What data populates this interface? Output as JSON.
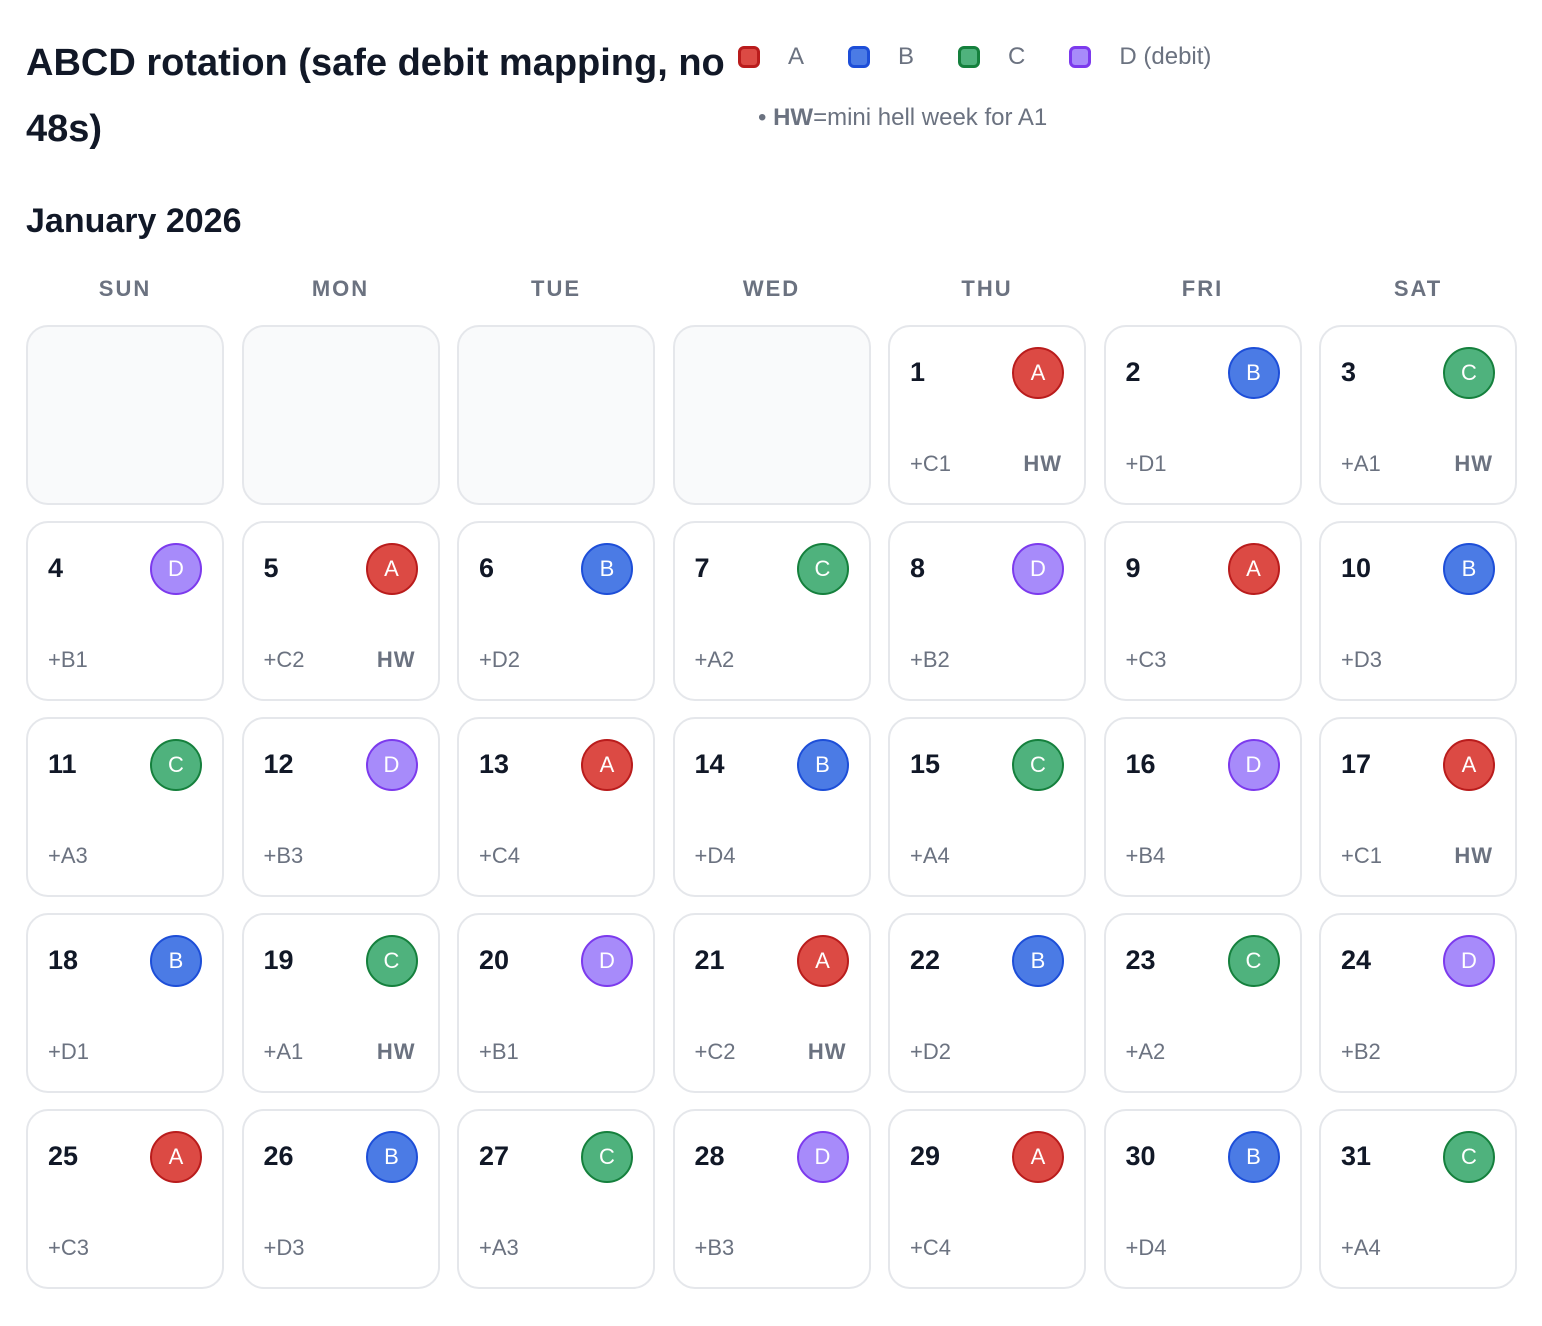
{
  "title": "ABCD rotation (safe debit mapping, no 48s)",
  "legend": {
    "items": [
      {
        "key": "A",
        "label": "A",
        "color": "#dc4a44",
        "border": "#b91c1c"
      },
      {
        "key": "B",
        "label": "B",
        "color": "#4b7be5",
        "border": "#1d4ed8"
      },
      {
        "key": "C",
        "label": "C",
        "color": "#4fb27d",
        "border": "#15803d"
      },
      {
        "key": "D",
        "label": "D (debit)",
        "color": "#a78bfa",
        "border": "#7c3aed"
      }
    ],
    "note_bullet": "•",
    "note_key": "HW",
    "note_text": "=mini hell week for A1"
  },
  "month_title": "January 2026",
  "weekdays": [
    "SUN",
    "MON",
    "TUE",
    "WED",
    "THU",
    "FRI",
    "SAT"
  ],
  "leading_empty": 4,
  "days": [
    {
      "day": "1",
      "crew": "A",
      "extra": "+C1",
      "hw": "HW"
    },
    {
      "day": "2",
      "crew": "B",
      "extra": "+D1",
      "hw": ""
    },
    {
      "day": "3",
      "crew": "C",
      "extra": "+A1",
      "hw": "HW"
    },
    {
      "day": "4",
      "crew": "D",
      "extra": "+B1",
      "hw": ""
    },
    {
      "day": "5",
      "crew": "A",
      "extra": "+C2",
      "hw": "HW"
    },
    {
      "day": "6",
      "crew": "B",
      "extra": "+D2",
      "hw": ""
    },
    {
      "day": "7",
      "crew": "C",
      "extra": "+A2",
      "hw": ""
    },
    {
      "day": "8",
      "crew": "D",
      "extra": "+B2",
      "hw": ""
    },
    {
      "day": "9",
      "crew": "A",
      "extra": "+C3",
      "hw": ""
    },
    {
      "day": "10",
      "crew": "B",
      "extra": "+D3",
      "hw": ""
    },
    {
      "day": "11",
      "crew": "C",
      "extra": "+A3",
      "hw": ""
    },
    {
      "day": "12",
      "crew": "D",
      "extra": "+B3",
      "hw": ""
    },
    {
      "day": "13",
      "crew": "A",
      "extra": "+C4",
      "hw": ""
    },
    {
      "day": "14",
      "crew": "B",
      "extra": "+D4",
      "hw": ""
    },
    {
      "day": "15",
      "crew": "C",
      "extra": "+A4",
      "hw": ""
    },
    {
      "day": "16",
      "crew": "D",
      "extra": "+B4",
      "hw": ""
    },
    {
      "day": "17",
      "crew": "A",
      "extra": "+C1",
      "hw": "HW"
    },
    {
      "day": "18",
      "crew": "B",
      "extra": "+D1",
      "hw": ""
    },
    {
      "day": "19",
      "crew": "C",
      "extra": "+A1",
      "hw": "HW"
    },
    {
      "day": "20",
      "crew": "D",
      "extra": "+B1",
      "hw": ""
    },
    {
      "day": "21",
      "crew": "A",
      "extra": "+C2",
      "hw": "HW"
    },
    {
      "day": "22",
      "crew": "B",
      "extra": "+D2",
      "hw": ""
    },
    {
      "day": "23",
      "crew": "C",
      "extra": "+A2",
      "hw": ""
    },
    {
      "day": "24",
      "crew": "D",
      "extra": "+B2",
      "hw": ""
    },
    {
      "day": "25",
      "crew": "A",
      "extra": "+C3",
      "hw": ""
    },
    {
      "day": "26",
      "crew": "B",
      "extra": "+D3",
      "hw": ""
    },
    {
      "day": "27",
      "crew": "C",
      "extra": "+A3",
      "hw": ""
    },
    {
      "day": "28",
      "crew": "D",
      "extra": "+B3",
      "hw": ""
    },
    {
      "day": "29",
      "crew": "A",
      "extra": "+C4",
      "hw": ""
    },
    {
      "day": "30",
      "crew": "B",
      "extra": "+D4",
      "hw": ""
    },
    {
      "day": "31",
      "crew": "C",
      "extra": "+A4",
      "hw": ""
    }
  ]
}
